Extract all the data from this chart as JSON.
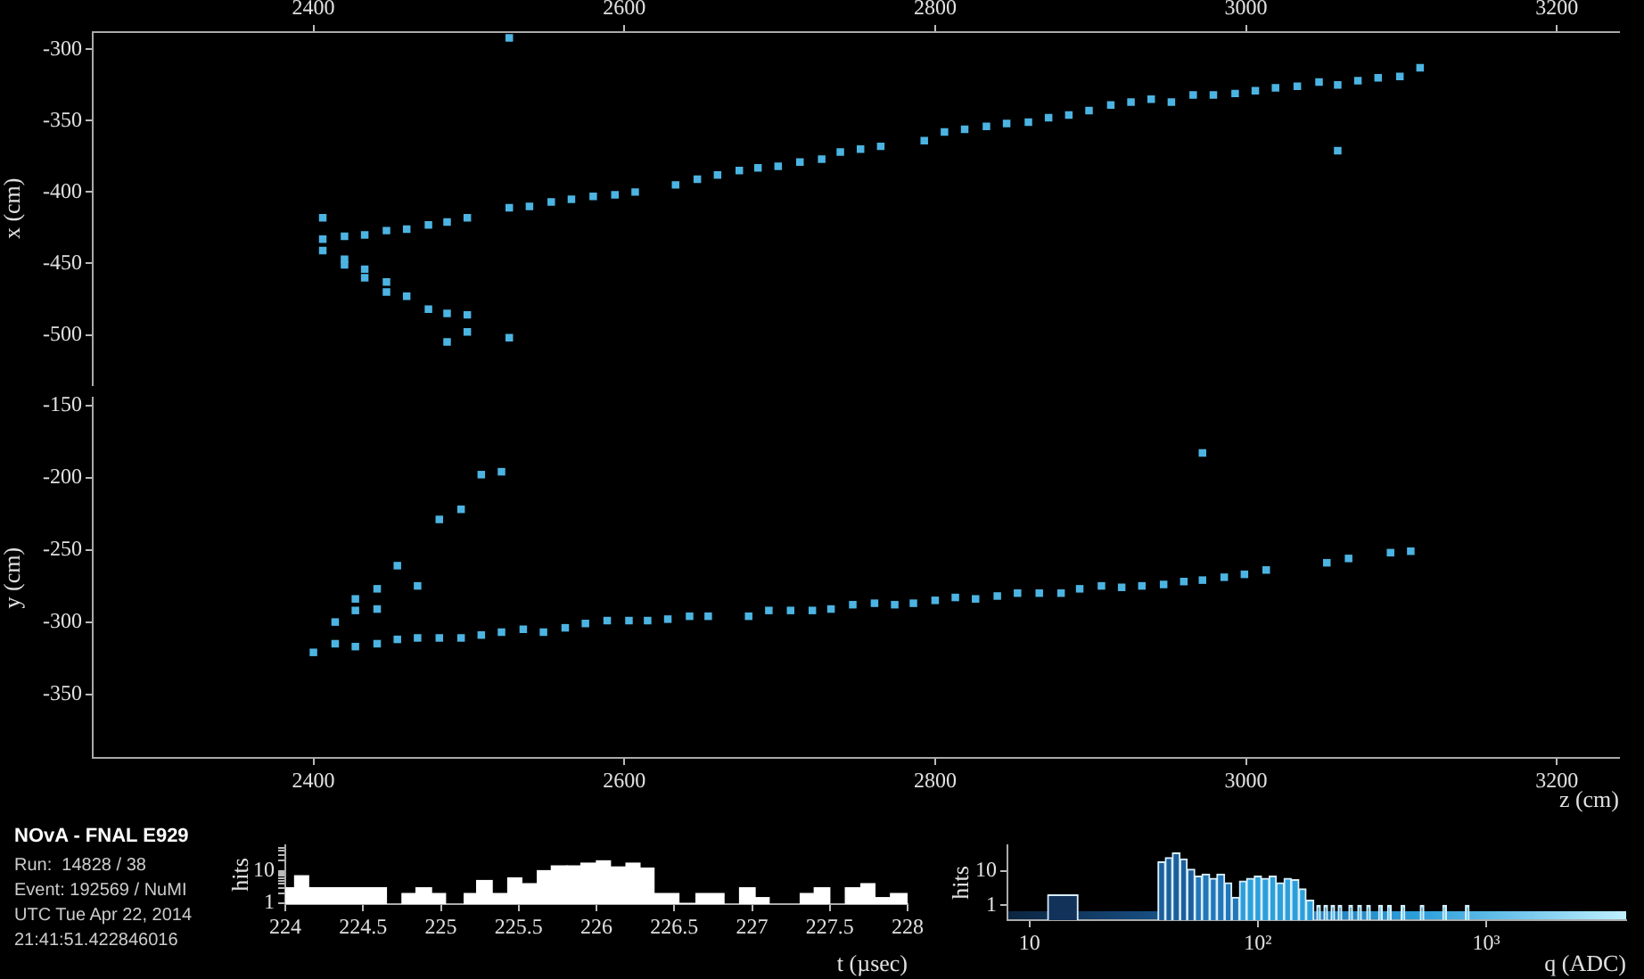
{
  "chart_data": [
    {
      "type": "scatter",
      "ylabel": "x (cm)",
      "color": "#4cb4e2",
      "marker": "square",
      "grid": false,
      "legend": false,
      "xlim": [
        2258,
        3240
      ],
      "xticks": [
        2400,
        2600,
        2800,
        3000,
        3200
      ],
      "ylim": [
        -535,
        -288
      ],
      "yticks": [
        -300,
        -350,
        -400,
        -450,
        -500
      ],
      "x": [
        2406,
        2406,
        2406,
        2420,
        2420,
        2420,
        2433,
        2433,
        2433,
        2447,
        2447,
        2447,
        2460,
        2460,
        2474,
        2474,
        2486,
        2486,
        2486,
        2499,
        2499,
        2499,
        2526,
        2526,
        2526,
        2539,
        2553,
        2566,
        2580,
        2594,
        2607,
        2633,
        2647,
        2660,
        2674,
        2686,
        2699,
        2713,
        2727,
        2739,
        2752,
        2765,
        2793,
        2806,
        2819,
        2833,
        2846,
        2860,
        2873,
        2886,
        2899,
        2913,
        2926,
        2939,
        2952,
        2966,
        2979,
        2993,
        3006,
        3019,
        3033,
        3047,
        3059,
        3059,
        3072,
        3085,
        3099,
        3112
      ],
      "values": [
        -418,
        -433,
        -441,
        -431,
        -447,
        -451,
        -430,
        -454,
        -460,
        -427,
        -463,
        -470,
        -426,
        -473,
        -423,
        -482,
        -421,
        -485,
        -505,
        -418,
        -486,
        -498,
        -292,
        -411,
        -502,
        -410,
        -407,
        -405,
        -403,
        -402,
        -400,
        -395,
        -391,
        -388,
        -385,
        -383,
        -382,
        -379,
        -377,
        -372,
        -370,
        -368,
        -364,
        -358,
        -356,
        -354,
        -352,
        -351,
        -348,
        -346,
        -343,
        -339,
        -337,
        -335,
        -337,
        -332,
        -332,
        -331,
        -329,
        -327,
        -326,
        -323,
        -325,
        -371,
        -322,
        -320,
        -319,
        -313
      ]
    },
    {
      "type": "scatter",
      "ylabel": "y (cm)",
      "xlabel": "z (cm)",
      "color": "#4cb4e2",
      "marker": "square",
      "grid": false,
      "legend": false,
      "xlim": [
        2258,
        3240
      ],
      "xticks": [
        2400,
        2600,
        2800,
        3000,
        3200
      ],
      "ylim": [
        -394,
        -145
      ],
      "yticks": [
        -150,
        -200,
        -250,
        -300,
        -350
      ],
      "x": [
        2400,
        2414,
        2414,
        2427,
        2427,
        2427,
        2441,
        2441,
        2441,
        2454,
        2454,
        2467,
        2467,
        2481,
        2481,
        2495,
        2495,
        2508,
        2508,
        2521,
        2521,
        2535,
        2548,
        2562,
        2575,
        2589,
        2603,
        2615,
        2628,
        2642,
        2654,
        2680,
        2693,
        2707,
        2721,
        2733,
        2747,
        2761,
        2774,
        2786,
        2800,
        2813,
        2826,
        2840,
        2853,
        2867,
        2881,
        2893,
        2907,
        2920,
        2933,
        2947,
        2960,
        2972,
        2972,
        2986,
        2999,
        3013,
        3052,
        3066,
        3093,
        3106
      ],
      "values": [
        -321,
        -315,
        -300,
        -317,
        -284,
        -292,
        -315,
        -291,
        -277,
        -261,
        -312,
        -275,
        -311,
        -311,
        -229,
        -311,
        -222,
        -309,
        -198,
        -196,
        -307,
        -305,
        -307,
        -304,
        -301,
        -299,
        -299,
        -299,
        -298,
        -296,
        -296,
        -296,
        -292,
        -292,
        -292,
        -291,
        -288,
        -287,
        -288,
        -287,
        -285,
        -283,
        -284,
        -282,
        -280,
        -280,
        -280,
        -277,
        -275,
        -276,
        -275,
        -274,
        -272,
        -271,
        -183,
        -269,
        -267,
        -264,
        -259,
        -256,
        -252,
        -251
      ]
    },
    {
      "type": "other",
      "title": "NOvA - FNAL E929",
      "annotations": [
        "Run:  14828 / 38",
        "Event: 192569 / NuMI",
        "UTC Tue Apr 22, 2014",
        "21:41:51.422846016"
      ]
    },
    {
      "type": "histogram",
      "xlabel": "t (µsec)",
      "ylabel": "hits",
      "log": "y",
      "color": "#ffffff",
      "xlim": [
        224,
        228
      ],
      "xticks": [
        224,
        224.5,
        225,
        225.5,
        226,
        226.5,
        227,
        227.5,
        228
      ],
      "ylim": [
        0.95,
        60
      ],
      "yticks": [
        1,
        {
          "value": 2,
          "label": null
        },
        {
          "value": 3,
          "label": null
        },
        {
          "value": 4,
          "label": null
        },
        {
          "value": 5,
          "label": null
        },
        {
          "value": 6,
          "label": null
        },
        {
          "value": 7,
          "label": null
        },
        {
          "value": 8,
          "label": null
        },
        {
          "value": 9,
          "label": null
        },
        10,
        {
          "value": 20,
          "label": null
        },
        {
          "value": 30,
          "label": null
        },
        {
          "value": 40,
          "label": null
        },
        {
          "value": 50,
          "label": null
        }
      ],
      "bins": [
        224.0,
        224.06,
        224.15,
        224.65,
        224.75,
        224.84,
        224.94,
        225.03,
        225.15,
        225.23,
        225.33,
        225.43,
        225.52,
        225.62,
        225.71,
        225.81,
        225.9,
        226.0,
        226.09,
        226.19,
        226.28,
        226.37,
        226.53,
        226.64,
        226.82,
        226.92,
        227.02,
        227.11,
        227.31,
        227.4,
        227.5,
        227.6,
        227.7,
        227.79,
        227.89,
        228.0
      ],
      "values": [
        3,
        7,
        3,
        null,
        2,
        3,
        2,
        null,
        2,
        5,
        2,
        6,
        4,
        10,
        14,
        14,
        17,
        20,
        13,
        17,
        12,
        2,
        1,
        2,
        null,
        3,
        1.5,
        null,
        2,
        3,
        null,
        3,
        4,
        1.5,
        2
      ]
    },
    {
      "type": "histogram",
      "xlabel": "q (ADC)",
      "ylabel": "hits",
      "log": "xy",
      "color": "#d8eefa",
      "xlim": [
        8,
        4100
      ],
      "xticks": [
        {
          "value": 10,
          "label": "10"
        },
        {
          "value": 100,
          "label": "10²"
        },
        {
          "value": 1000,
          "label": "10³"
        }
      ],
      "ylim": [
        0.37,
        55
      ],
      "yticks": [
        1,
        10
      ],
      "bins": [
        12,
        16.3,
        36.5,
        39.3,
        42.2,
        45.6,
        49.0,
        52.9,
        56.9,
        61.5,
        66.1,
        71.5,
        76.8,
        83.0,
        89.2,
        96.4,
        103.7,
        112.1,
        120.4,
        130.2,
        139.9,
        151.2,
        162.5,
        175.7,
        181.1,
        187.7,
        194.6,
        201.7,
        209.1,
        216.7,
        224.7,
        232.9,
        250.3,
        259.5,
        273.8,
        283.9,
        299.7,
        310.6,
        337.8,
        350.2,
        369.6,
        383.1,
        424.2,
        439.8,
        514,
        533,
        645.5,
        669.2,
        810.9,
        840.8
      ],
      "values": [
        2,
        null,
        18,
        24,
        33,
        22,
        11,
        7,
        8,
        6,
        8,
        4.5,
        1.7,
        5,
        6,
        7,
        6,
        7,
        4.5,
        6,
        5.5,
        3,
        1.4,
        null,
        1,
        null,
        1,
        null,
        1,
        null,
        1,
        null,
        1,
        null,
        1,
        null,
        1,
        null,
        1,
        null,
        1,
        null,
        1,
        null,
        1,
        null,
        1,
        null,
        1
      ],
      "colors": [
        "#12325a",
        "#12325a",
        "#1c5f9c",
        "#1c5f9c",
        "#1c5f9c",
        "#1c5f9c",
        "#1c5f9c",
        "#2277b8",
        "#2277b8",
        "#2277b8",
        "#2277b8",
        "#2277b8",
        "#2277b8",
        "#2c9fdb",
        "#2c9fdb",
        "#2c9fdb",
        "#2c9fdb",
        "#2c9fdb",
        "#2c9fdb",
        "#2c9fdb",
        "#2c9fdb",
        "#2c9fdb",
        "#2c9fdb",
        "#7fd3f2",
        "#7fd3f2",
        "#7fd3f2",
        "#7fd3f2",
        "#7fd3f2",
        "#7fd3f2",
        "#7fd3f2",
        "#7fd3f2",
        "#7fd3f2",
        "#7fd3f2",
        "#7fd3f2",
        "#7fd3f2",
        "#7fd3f2",
        "#7fd3f2",
        "#7fd3f2",
        "#7fd3f2",
        "#7fd3f2",
        "#7fd3f2",
        "#7fd3f2",
        "#7fd3f2",
        "#7fd3f2",
        "#7fd3f2",
        "#7fd3f2",
        "#7fd3f2",
        "#7fd3f2",
        "#7fd3f2"
      ]
    }
  ]
}
